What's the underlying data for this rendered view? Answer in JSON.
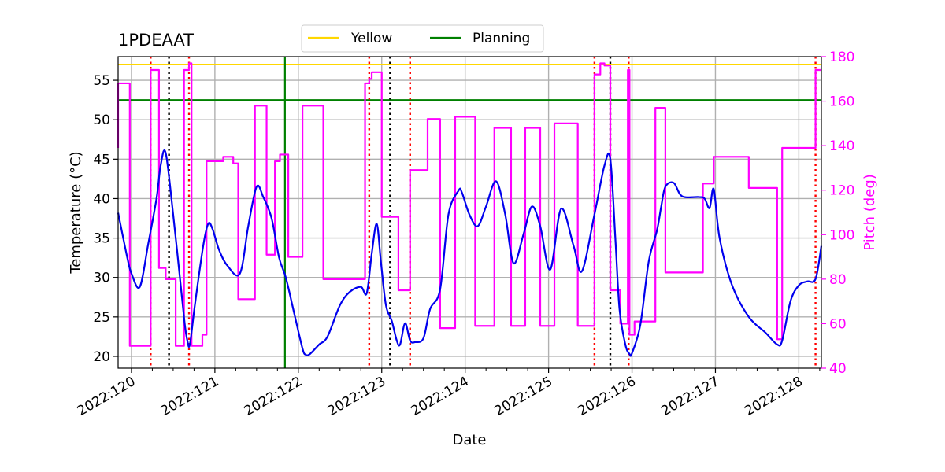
{
  "chart_data": {
    "type": "line",
    "title": "1PDEAAT",
    "xlabel": "Date",
    "ylabel_left": "Temperature ($^\\circ$C)",
    "ylabel_right": "Pitch (deg)",
    "xlim": [
      119.84,
      128.27
    ],
    "ylim_left": [
      18.5,
      58.0
    ],
    "ylim_right": [
      40,
      180
    ],
    "x_ticks": [
      120,
      121,
      122,
      123,
      124,
      125,
      126,
      127,
      128
    ],
    "x_tick_labels": [
      "2022:120",
      "2022:121",
      "2022:122",
      "2022:123",
      "2022:124",
      "2022:125",
      "2022:126",
      "2022:127",
      "2022:128"
    ],
    "y_ticks_left": [
      20,
      25,
      30,
      35,
      40,
      45,
      50,
      55
    ],
    "y_ticks_right": [
      40,
      60,
      80,
      100,
      120,
      140,
      160,
      180
    ],
    "grid": true,
    "legend": {
      "placement": "top-center",
      "entries": [
        "Yellow",
        "Planning"
      ]
    },
    "colors": {
      "temperature": "#0000ee",
      "pitch": "#ff00ff",
      "yellow": "#ffd700",
      "planning": "#008000",
      "red_marker": "#ff0000",
      "black_marker": "#000000",
      "grid": "#b0b0b0",
      "right_axis": "#ff00ff"
    },
    "limits": [
      {
        "name": "Yellow",
        "value": 57.0,
        "color": "#ffd700"
      },
      {
        "name": "Planning",
        "value": 52.5,
        "color": "#008000"
      }
    ],
    "planning_vline_x": 121.84,
    "red_dotted_x": [
      120.23,
      120.69,
      122.85,
      123.34,
      125.55,
      125.96,
      128.2
    ],
    "black_dotted_x": [
      120.45,
      123.1,
      125.74
    ],
    "temperature_series": {
      "x": [
        119.84,
        119.95,
        120.0,
        120.1,
        120.2,
        120.3,
        120.35,
        120.41,
        120.5,
        120.6,
        120.64,
        120.67,
        120.7,
        120.76,
        120.86,
        120.92,
        120.97,
        121.05,
        121.15,
        121.3,
        121.4,
        121.5,
        121.58,
        121.68,
        121.77,
        121.85,
        121.95,
        122.05,
        122.09,
        122.14,
        122.25,
        122.35,
        122.5,
        122.62,
        122.75,
        122.82,
        122.88,
        122.94,
        122.99,
        123.05,
        123.12,
        123.18,
        123.22,
        123.28,
        123.34,
        123.4,
        123.5,
        123.58,
        123.7,
        123.8,
        123.92,
        123.96,
        124.05,
        124.15,
        124.25,
        124.37,
        124.48,
        124.58,
        124.7,
        124.8,
        124.9,
        125.02,
        125.15,
        125.3,
        125.4,
        125.55,
        125.67,
        125.74,
        125.8,
        125.85,
        125.92,
        125.97,
        126.0,
        126.1,
        126.2,
        126.3,
        126.35,
        126.4,
        126.5,
        126.6,
        126.8,
        126.87,
        126.93,
        126.98,
        127.05,
        127.2,
        127.4,
        127.6,
        127.74,
        127.8,
        127.9,
        128.0,
        128.1,
        128.2,
        128.27
      ],
      "y": [
        38.2,
        32.5,
        30.5,
        28.8,
        34.2,
        40.0,
        44.2,
        45.8,
        38.0,
        28.0,
        24.0,
        22.0,
        21.5,
        26.5,
        34.0,
        36.8,
        36.2,
        33.5,
        31.5,
        30.5,
        36.5,
        41.5,
        40.2,
        37.5,
        32.5,
        30.0,
        25.5,
        21.0,
        20.2,
        20.3,
        21.5,
        22.5,
        26.5,
        28.2,
        28.8,
        28.0,
        33.0,
        36.8,
        32.0,
        26.5,
        24.5,
        22.0,
        21.5,
        24.2,
        22.0,
        21.8,
        22.3,
        26.0,
        28.5,
        38.0,
        41.0,
        40.8,
        38.0,
        36.5,
        39.0,
        42.2,
        38.0,
        31.8,
        35.5,
        39.0,
        36.5,
        31.0,
        38.7,
        34.0,
        30.8,
        38.0,
        44.2,
        45.0,
        35.0,
        26.0,
        21.5,
        20.3,
        20.4,
        24.0,
        32.0,
        36.0,
        39.0,
        41.5,
        42.0,
        40.3,
        40.2,
        40.0,
        38.8,
        41.2,
        35.0,
        29.0,
        25.0,
        23.0,
        21.5,
        22.0,
        27.0,
        29.0,
        29.5,
        29.8,
        34.0
      ]
    },
    "pitch_series": {
      "x": [
        119.84,
        119.84,
        119.98,
        119.98,
        120.23,
        120.23,
        120.33,
        120.33,
        120.41,
        120.41,
        120.53,
        120.53,
        120.63,
        120.63,
        120.69,
        120.69,
        120.72,
        120.72,
        120.85,
        120.85,
        120.9,
        120.9,
        121.1,
        121.1,
        121.22,
        121.22,
        121.28,
        121.28,
        121.48,
        121.48,
        121.62,
        121.62,
        121.72,
        121.72,
        121.78,
        121.78,
        121.88,
        121.88,
        122.05,
        122.05,
        122.3,
        122.3,
        122.8,
        122.8,
        122.85,
        122.85,
        122.88,
        122.88,
        123.0,
        123.0,
        123.2,
        123.2,
        123.34,
        123.34,
        123.55,
        123.55,
        123.7,
        123.7,
        123.88,
        123.88,
        124.12,
        124.12,
        124.35,
        124.35,
        124.55,
        124.55,
        124.72,
        124.72,
        124.9,
        124.9,
        125.07,
        125.07,
        125.35,
        125.35,
        125.55,
        125.55,
        125.62,
        125.62,
        125.67,
        125.67,
        125.74,
        125.74,
        125.86,
        125.86,
        125.95,
        125.95,
        125.97,
        125.97,
        126.03,
        126.03,
        126.28,
        126.28,
        126.4,
        126.4,
        126.85,
        126.85,
        126.98,
        126.98,
        127.4,
        127.4,
        127.74,
        127.74,
        127.8,
        127.8,
        128.2,
        128.2,
        128.27
      ],
      "y": [
        139,
        168,
        168,
        50,
        50,
        174,
        174,
        85,
        85,
        80,
        80,
        50,
        50,
        174,
        174,
        177,
        177,
        50,
        50,
        55,
        55,
        133,
        133,
        135,
        135,
        132,
        132,
        71,
        71,
        158,
        158,
        91,
        91,
        133,
        133,
        136,
        136,
        90,
        90,
        158,
        158,
        80,
        80,
        168,
        168,
        170,
        170,
        173,
        173,
        108,
        108,
        75,
        75,
        129,
        129,
        152,
        152,
        58,
        58,
        153,
        153,
        59,
        59,
        148,
        148,
        59,
        59,
        148,
        148,
        59,
        59,
        150,
        150,
        59,
        59,
        172,
        172,
        177,
        177,
        176,
        176,
        75,
        75,
        60,
        60,
        174,
        174,
        55,
        55,
        61,
        61,
        157,
        157,
        83,
        83,
        123,
        123,
        135,
        135,
        121,
        121,
        53,
        53,
        139,
        139,
        174,
        174
      ]
    }
  }
}
